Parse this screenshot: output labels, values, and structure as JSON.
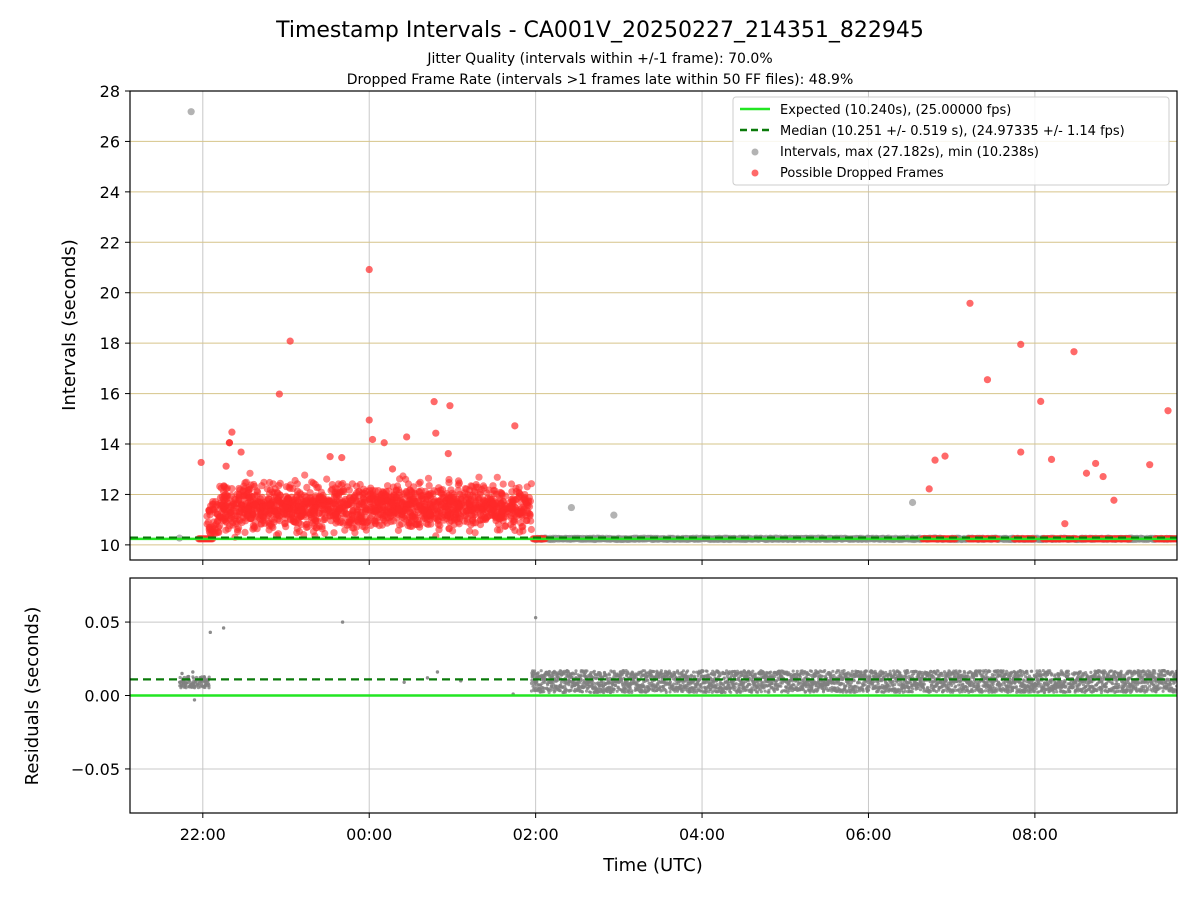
{
  "chart_data": [
    {
      "type": "scatter",
      "title": "Timestamp Intervals - CA001V_20250227_214351_822945",
      "subtitle_lines": [
        "Jitter Quality (intervals within +/-1 frame): 70.0%",
        "Dropped Frame Rate (intervals >1 frames late within 50 FF files): 48.9%"
      ],
      "xlabel": "",
      "ylabel": "Intervals (seconds)",
      "x_unit": "hours (UTC, continued past midnight)",
      "xlim": [
        21.125,
        33.708
      ],
      "ylim": [
        9.4,
        28.0
      ],
      "xticks": [
        {
          "value": 22,
          "label": "22:00"
        },
        {
          "value": 24,
          "label": "00:00"
        },
        {
          "value": 26,
          "label": "02:00"
        },
        {
          "value": 28,
          "label": "04:00"
        },
        {
          "value": 30,
          "label": "06:00"
        },
        {
          "value": 32,
          "label": "08:00"
        }
      ],
      "yticks": [
        10,
        12,
        14,
        16,
        18,
        20,
        22,
        24,
        26,
        28
      ],
      "grid": "vertical grey at x ticks, horizontal tan at y ticks",
      "legend_position": "top-right",
      "legend": [
        {
          "label": "Expected (10.240s), (25.00000 fps)",
          "style": "solid-line",
          "color": "#22e622"
        },
        {
          "label": "Median (10.251 +/- 0.519 s), (24.97335 +/- 1.14 fps)",
          "style": "dashed-line",
          "color": "#0a7a0a"
        },
        {
          "label": "Intervals, max (27.182s), min (10.238s)",
          "style": "marker",
          "color": "#999999"
        },
        {
          "label": "Possible Dropped Frames",
          "style": "marker",
          "color": "#ff2a2a"
        }
      ],
      "expected_value": 10.24,
      "median_value": 10.251,
      "series": [
        {
          "name": "Intervals, max (27.182s), min (10.238s)",
          "points": [
            [
              21.86,
              27.18
            ],
            [
              21.72,
              10.27
            ],
            [
              26.43,
              11.48
            ],
            [
              26.94,
              11.18
            ],
            [
              30.53,
              11.68
            ]
          ],
          "dense_band": {
            "x_start": 26.0,
            "x_end": 33.708,
            "y": 10.24
          }
        },
        {
          "name": "Possible Dropped Frames",
          "points": [
            [
              24.0,
              20.92
            ],
            [
              23.05,
              18.08
            ],
            [
              22.92,
              15.98
            ],
            [
              24.0,
              14.95
            ],
            [
              24.04,
              14.18
            ],
            [
              24.18,
              14.05
            ],
            [
              24.45,
              14.28
            ],
            [
              24.78,
              15.68
            ],
            [
              24.97,
              15.52
            ],
            [
              24.8,
              14.43
            ],
            [
              25.75,
              14.72
            ],
            [
              22.35,
              14.47
            ],
            [
              22.32,
              14.05
            ],
            [
              22.32,
              14.05
            ],
            [
              22.28,
              13.12
            ],
            [
              22.46,
              13.68
            ],
            [
              23.53,
              13.5
            ],
            [
              23.67,
              13.46
            ],
            [
              21.98,
              13.27
            ],
            [
              24.95,
              13.62
            ],
            [
              24.28,
              13.01
            ],
            [
              30.8,
              13.36
            ],
            [
              30.92,
              13.52
            ],
            [
              30.73,
              12.22
            ],
            [
              31.22,
              19.58
            ],
            [
              31.43,
              16.55
            ],
            [
              31.83,
              17.95
            ],
            [
              32.47,
              17.66
            ],
            [
              32.07,
              15.69
            ],
            [
              31.83,
              13.68
            ],
            [
              32.2,
              13.39
            ],
            [
              32.62,
              12.84
            ],
            [
              32.73,
              13.23
            ],
            [
              32.82,
              12.71
            ],
            [
              32.95,
              11.77
            ],
            [
              33.38,
              13.18
            ],
            [
              33.6,
              15.32
            ],
            [
              32.36,
              10.84
            ]
          ],
          "dense_cluster": {
            "x_start": 22.05,
            "x_end": 25.95,
            "y_min": 10.3,
            "y_max": 13.0,
            "y_center": 11.5
          },
          "baseline_runs": [
            [
              21.95,
              22.12
            ],
            [
              25.97,
              26.12
            ],
            [
              30.65,
              31.05
            ],
            [
              31.2,
              31.55
            ],
            [
              31.75,
              32.0
            ],
            [
              32.1,
              32.5
            ],
            [
              32.55,
              33.15
            ],
            [
              33.45,
              33.708
            ]
          ],
          "baseline_y": 10.24
        }
      ]
    },
    {
      "type": "scatter",
      "title": "",
      "xlabel": "Time (UTC)",
      "ylabel": "Residuals (seconds)",
      "xlim": [
        21.125,
        33.708
      ],
      "ylim": [
        -0.08,
        0.08
      ],
      "xticks": [
        {
          "value": 22,
          "label": "22:00"
        },
        {
          "value": 24,
          "label": "00:00"
        },
        {
          "value": 26,
          "label": "02:00"
        },
        {
          "value": 28,
          "label": "04:00"
        },
        {
          "value": 30,
          "label": "06:00"
        },
        {
          "value": 32,
          "label": "08:00"
        }
      ],
      "yticks": [
        {
          "value": 0.05,
          "label": "0.05"
        },
        {
          "value": 0.0,
          "label": "0.00"
        },
        {
          "value": -0.05,
          "label": "−0.05"
        }
      ],
      "grid": "grey at x and y ticks",
      "expected_value": 0.0,
      "median_value": 0.011,
      "series": [
        {
          "name": "",
          "points": [
            [
              22.09,
              0.043
            ],
            [
              22.25,
              0.046
            ],
            [
              23.68,
              0.05
            ],
            [
              26.0,
              0.053
            ],
            [
              25.73,
              0.001
            ],
            [
              24.82,
              0.016
            ],
            [
              21.9,
              -0.003
            ],
            [
              24.42,
              0.009
            ],
            [
              25.1,
              0.01
            ],
            [
              24.7,
              0.012
            ],
            [
              21.75,
              0.015
            ],
            [
              21.88,
              0.016
            ]
          ],
          "early_cluster": {
            "x_start": 21.72,
            "x_end": 22.08,
            "y_min": 0.005,
            "y_max": 0.013
          },
          "dense_band": {
            "x_start": 25.95,
            "x_end": 33.708,
            "y_min": 0.002,
            "y_max": 0.017
          }
        }
      ]
    }
  ]
}
